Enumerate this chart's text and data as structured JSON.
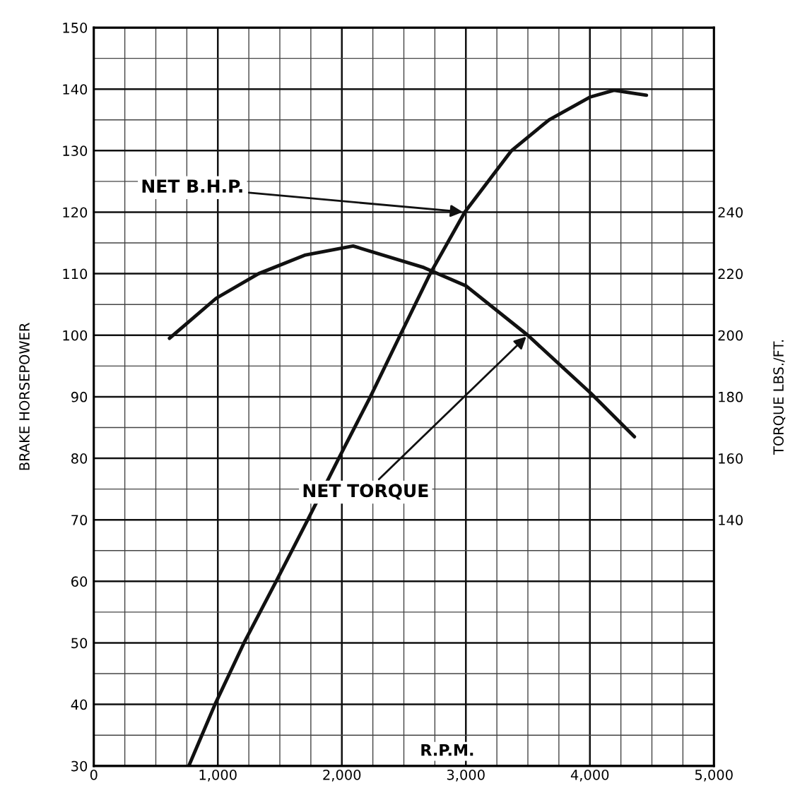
{
  "chart_data": {
    "type": "line",
    "xlabel": "R.P.M.",
    "ylabel": "BRAKE HORSEPOWER",
    "y2label": "TORQUE LBS./FT.",
    "xlim": [
      0,
      5000
    ],
    "xticks": [
      0,
      {
        "value": 1000,
        "label": "1,000"
      },
      {
        "value": 2000,
        "label": "2,000"
      },
      {
        "value": 3000,
        "label": "3,000"
      },
      {
        "value": 4000,
        "label": "4,000"
      },
      {
        "value": 5000,
        "label": "5,000"
      }
    ],
    "ylim": [
      30,
      150
    ],
    "yticks": [
      30,
      40,
      50,
      60,
      70,
      80,
      90,
      100,
      110,
      120,
      130,
      140,
      150
    ],
    "y2lim": [
      60,
      300
    ],
    "y2ticks": [
      140,
      160,
      180,
      200,
      220,
      240
    ],
    "grid": true,
    "line_style": "solid",
    "marker": "none",
    "series": [
      {
        "color": "#111111",
        "x": [
          766,
          977,
          1211,
          1470,
          1725,
          1975,
          2230,
          2470,
          2712,
          2991,
          3368,
          3670,
          4000,
          4194,
          4456
        ],
        "values": [
          30,
          40,
          50,
          60,
          70,
          80,
          90,
          100,
          110,
          120,
          130,
          135,
          138.7,
          139.8,
          139.0
        ]
      },
      {
        "color": "#111111",
        "axis": "y2",
        "x": [
          610,
          986,
          1328,
          1700,
          2091,
          2661,
          3003,
          3499,
          4011,
          4359
        ],
        "values": [
          199,
          212,
          220,
          226,
          229,
          222,
          216,
          200,
          181,
          167
        ]
      }
    ],
    "annotations": [
      {
        "text": "NET B.H.P.",
        "x": 2991,
        "y": 120
      },
      {
        "text": "NET TORQUE",
        "x": 3499,
        "y": 100
      }
    ]
  }
}
